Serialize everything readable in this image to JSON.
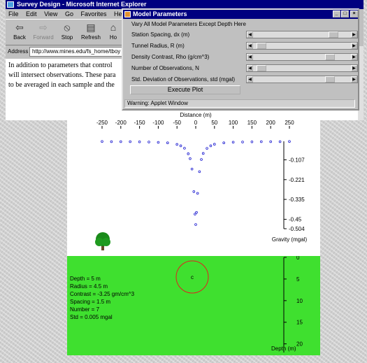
{
  "browser": {
    "title": "Survey Design - Microsoft Internet Explorer",
    "menu": [
      "File",
      "Edit",
      "View",
      "Go",
      "Favorites",
      "Help"
    ],
    "toolbar": [
      {
        "label": "Back",
        "icon": "back-arrow-icon"
      },
      {
        "label": "Forward",
        "icon": "forward-arrow-icon"
      },
      {
        "label": "Stop",
        "icon": "stop-icon"
      },
      {
        "label": "Refresh",
        "icon": "refresh-icon"
      },
      {
        "label": "Ho",
        "icon": "home-icon"
      }
    ],
    "address_label": "Address",
    "address_value": "http://www.mines.edu/fs_home/tboy",
    "body_lines": [
      "In addition to parameters that control",
      "will intersect observations. These para",
      "to be averaged in each sample and the"
    ]
  },
  "params": {
    "title": "Model Parameters",
    "vary_label": "Vary All Model Parameters Except Depth Here",
    "rows": [
      {
        "label": "Station Spacing, dx (m)",
        "position": 0.86
      },
      {
        "label": "Tunnel Radius, R (m)",
        "position": 0.04
      },
      {
        "label": "Density Contrast, Rho (g/cm^3)",
        "position": 0.82
      },
      {
        "label": "Number of Observations, N",
        "position": 0.04
      },
      {
        "label": "Std. Deviation of Observations, std (mgal)",
        "position": 0.82
      }
    ],
    "execute_label": "Execute Plot",
    "status": "Warning: Applet Window"
  },
  "chart_data": {
    "type": "scatter",
    "xlabel": "Distance (m)",
    "ylabel": "Gravity (mgal)",
    "xlim": [
      -250,
      250
    ],
    "ylim": [
      -0.504,
      0.0
    ],
    "x_ticks": [
      -250,
      -200,
      -150,
      -100,
      -50,
      0,
      50,
      100,
      150,
      200,
      250
    ],
    "y_ticks": [
      -0.107,
      -0.221,
      -0.335,
      -0.45,
      -0.504
    ],
    "y_tick_labels": [
      "-0.107",
      "-0.221",
      "-0.335",
      "-0.45",
      "-0.504"
    ],
    "series": [
      {
        "color": "#1a1ad0",
        "x": [
          -250,
          -225,
          -200,
          -175,
          -150,
          -125,
          -100,
          -75,
          -50,
          -40,
          -30,
          -20,
          -15,
          -10,
          -5,
          -2,
          0,
          2,
          5,
          10,
          15,
          20,
          30,
          40,
          50,
          75,
          100,
          125,
          150,
          175,
          200,
          225,
          250
        ],
        "y": [
          -0.001,
          -0.002,
          -0.002,
          -0.002,
          -0.003,
          -0.004,
          -0.006,
          -0.009,
          -0.018,
          -0.026,
          -0.04,
          -0.072,
          -0.1,
          -0.16,
          -0.29,
          -0.42,
          -0.48,
          -0.41,
          -0.3,
          -0.175,
          -0.105,
          -0.07,
          -0.041,
          -0.026,
          -0.017,
          -0.009,
          -0.005,
          -0.004,
          -0.003,
          -0.002,
          -0.002,
          -0.002,
          -0.001
        ]
      }
    ]
  },
  "depth_section": {
    "info": [
      "Depth = 5 m",
      "Radius = 4.5 m",
      "Contrast = -3.25 gm/cm^3",
      "Spacing = 1.5 m",
      "Number = 7",
      "Std = 0.005 mgal"
    ],
    "depth_ticks": [
      0,
      5,
      10,
      15,
      20
    ],
    "depth_label": "Depth (m)",
    "tunnel_marker": "c",
    "tunnel_color": "#e02020"
  }
}
